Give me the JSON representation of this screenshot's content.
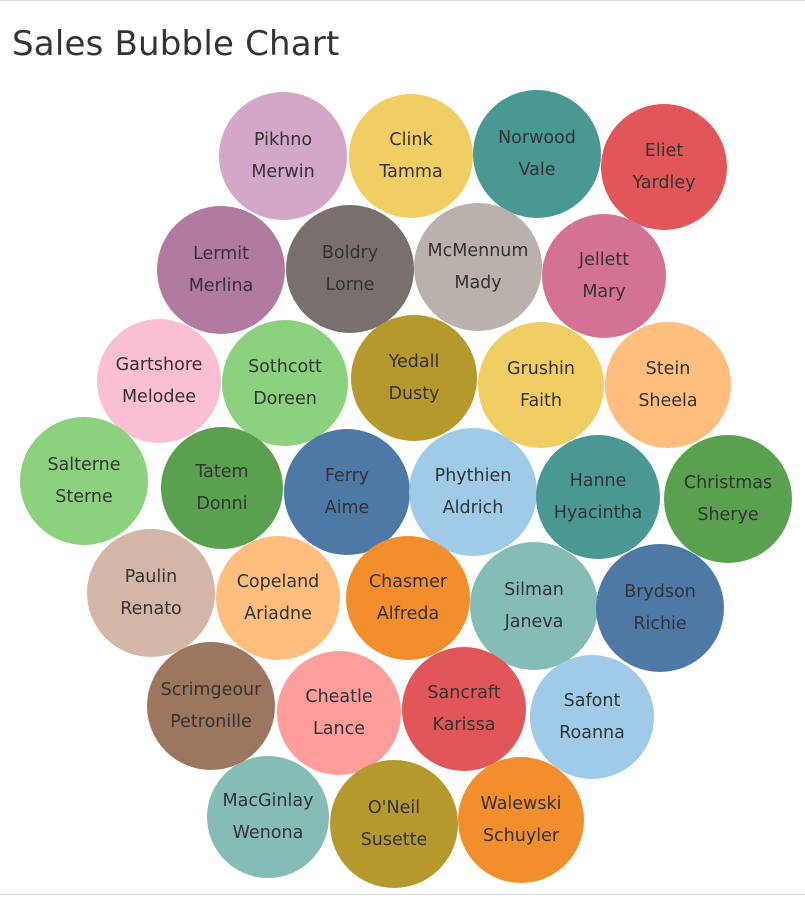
{
  "chart_data": {
    "type": "bubble",
    "title": "Sales Bubble Chart",
    "bubbles": [
      {
        "lines": [
          "Pikhno",
          "Merwin"
        ],
        "color": "#d4a6c8"
      },
      {
        "lines": [
          "Clink",
          "Tamma"
        ],
        "color": "#f1ce63"
      },
      {
        "lines": [
          "Norwood",
          "Vale"
        ],
        "color": "#499894"
      },
      {
        "lines": [
          "Eliet",
          "Yardley"
        ],
        "color": "#e15759"
      },
      {
        "lines": [
          "Lermit",
          "Merlina"
        ],
        "color": "#b07aa1"
      },
      {
        "lines": [
          "Boldry",
          "Lorne"
        ],
        "color": "#79706e"
      },
      {
        "lines": [
          "McMennum",
          "Mady"
        ],
        "color": "#bab0ac"
      },
      {
        "lines": [
          "Jellett",
          "Mary"
        ],
        "color": "#d37295"
      },
      {
        "lines": [
          "Gartshore",
          "Melodee"
        ],
        "color": "#fabfd2"
      },
      {
        "lines": [
          "Sothcott",
          "Doreen"
        ],
        "color": "#8cd17d"
      },
      {
        "lines": [
          "Yedall",
          "Dusty"
        ],
        "color": "#b6992d"
      },
      {
        "lines": [
          "Grushin",
          "Faith"
        ],
        "color": "#f1ce63"
      },
      {
        "lines": [
          "Stein",
          "Sheela"
        ],
        "color": "#ffbe7d"
      },
      {
        "lines": [
          "Salterne",
          "Sterne"
        ],
        "color": "#8cd17d"
      },
      {
        "lines": [
          "Tatem",
          "Donni"
        ],
        "color": "#59a14f"
      },
      {
        "lines": [
          "Ferry",
          "Aime"
        ],
        "color": "#4e79a7"
      },
      {
        "lines": [
          "Phythien",
          "Aldrich"
        ],
        "color": "#a0cbe8"
      },
      {
        "lines": [
          "Hanne",
          "Hyacintha"
        ],
        "color": "#499894"
      },
      {
        "lines": [
          "Christmas",
          "Sherye"
        ],
        "color": "#59a14f"
      },
      {
        "lines": [
          "Paulin",
          "Renato"
        ],
        "color": "#d4b6a6"
      },
      {
        "lines": [
          "Copeland",
          "Ariadne"
        ],
        "color": "#ffbe7d"
      },
      {
        "lines": [
          "Chasmer",
          "Alfreda"
        ],
        "color": "#f28e2b"
      },
      {
        "lines": [
          "Silman",
          "Janeva"
        ],
        "color": "#86bcb6"
      },
      {
        "lines": [
          "Brydson",
          "Richie"
        ],
        "color": "#4e79a7"
      },
      {
        "lines": [
          "Scrimgeour",
          "Petronille"
        ],
        "color": "#9d7660"
      },
      {
        "lines": [
          "Cheatle",
          "Lance"
        ],
        "color": "#ff9d9a"
      },
      {
        "lines": [
          "Sancraft",
          "Karissa"
        ],
        "color": "#e15759"
      },
      {
        "lines": [
          "Safont",
          "Roanna"
        ],
        "color": "#a0cbe8"
      },
      {
        "lines": [
          "MacGinlay",
          "Wenona"
        ],
        "color": "#86bcb6"
      },
      {
        "lines": [
          "O'Neil",
          "Susette"
        ],
        "color": "#b6992d"
      },
      {
        "lines": [
          "Walewski",
          "Schuyler"
        ],
        "color": "#f28e2b"
      }
    ]
  }
}
